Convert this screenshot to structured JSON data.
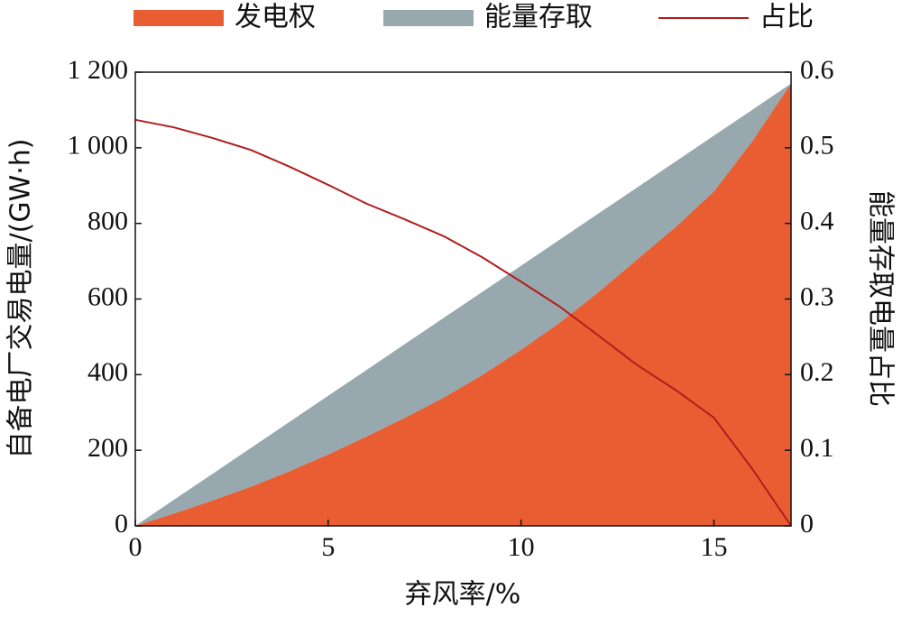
{
  "chart_data": {
    "type": "stacked_area",
    "x_label": "弃风率/%",
    "y_label": "自备电厂交易电量/(GW·h)",
    "y2_label": "能量存取电量占比",
    "x": [
      0,
      1,
      2,
      3,
      4,
      5,
      6,
      7,
      8,
      9,
      10,
      11,
      12,
      13,
      14,
      15,
      16,
      17
    ],
    "series": [
      {
        "name": "发电权",
        "color": "#e95d32",
        "values": [
          0,
          32.5,
          67.0,
          103.8,
          144.5,
          188.9,
          236.9,
          286.6,
          339.6,
          399.4,
          465.8,
          537.3,
          617.5,
          703.9,
          789.8,
          884.4,
          1018.2,
          1170
        ]
      },
      {
        "name": "能量存取",
        "color": "#97a9ae",
        "values": [
          0,
          36.3,
          70.6,
          102.6,
          130.7,
          155.1,
          175.9,
          195.0,
          210.8,
          219.8,
          222.2,
          219.5,
          208.1,
          190.5,
          173.4,
          147.6,
          82.6,
          0
        ]
      },
      {
        "name": "占比",
        "color": "#b01e1e",
        "axis": "y2",
        "line": true,
        "values": [
          0.537,
          0.527,
          0.513,
          0.497,
          0.475,
          0.451,
          0.426,
          0.405,
          0.383,
          0.355,
          0.323,
          0.29,
          0.252,
          0.213,
          0.18,
          0.143,
          0.075,
          0
        ]
      }
    ],
    "xlim": [
      0,
      17
    ],
    "xticks": [
      0,
      5,
      10,
      15
    ],
    "ylim": [
      0,
      1200
    ],
    "yticks": [
      0,
      200,
      400,
      600,
      800,
      {
        "value": 1000,
        "label": "1 000"
      },
      {
        "value": 1200,
        "label": "1 200"
      }
    ],
    "y2lim": [
      0,
      0.6
    ],
    "y2ticks": [
      0,
      0.1,
      0.2,
      0.3,
      0.4,
      0.5,
      0.6
    ],
    "legend": "top"
  }
}
